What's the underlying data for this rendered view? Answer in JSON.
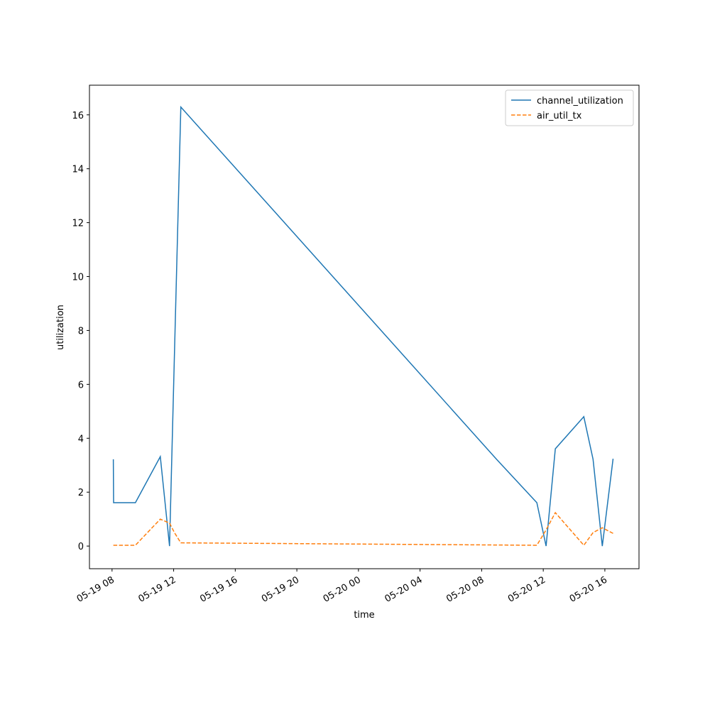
{
  "chart_data": {
    "type": "line",
    "x_label": "time",
    "y_label": "utilization",
    "x": [
      "05-19 08:05",
      "05-19 08:06",
      "05-19 09:31",
      "05-19 11:08",
      "05-19 11:44",
      "05-19 12:03",
      "05-19 12:28",
      "05-20 08:58",
      "05-20 11:35",
      "05-20 12:11",
      "05-20 12:47",
      "05-20 14:38",
      "05-20 15:14",
      "05-20 15:50",
      "05-20 16:32"
    ],
    "series": [
      {
        "name": "channel_utilization",
        "color": "#1f77b4",
        "dash": false,
        "values": [
          3.22,
          1.61,
          1.61,
          3.32,
          0,
          7.09,
          16.29,
          3.22,
          1.61,
          0,
          3.61,
          4.8,
          3.22,
          0,
          3.24
        ]
      },
      {
        "name": "air_util_tx",
        "color": "#ff7f0e",
        "dash": true,
        "values": [
          0.03,
          0.03,
          0.03,
          1.0,
          0.85,
          0.5,
          0.12,
          0.04,
          0.03,
          0.6,
          1.24,
          0.03,
          0.5,
          0.68,
          0.47
        ]
      }
    ],
    "xlim": [
      "05-19 06:32",
      "05-20 18:13"
    ],
    "xticks": [
      "05-19 08",
      "05-19 12",
      "05-19 16",
      "05-19 20",
      "05-20 00",
      "05-20 04",
      "05-20 08",
      "05-20 12",
      "05-20 16"
    ],
    "ylim": [
      -0.84,
      17.1
    ],
    "yticks": [
      0,
      2,
      4,
      6,
      8,
      10,
      12,
      14,
      16
    ],
    "legend": "upper-right",
    "grid": false
  }
}
